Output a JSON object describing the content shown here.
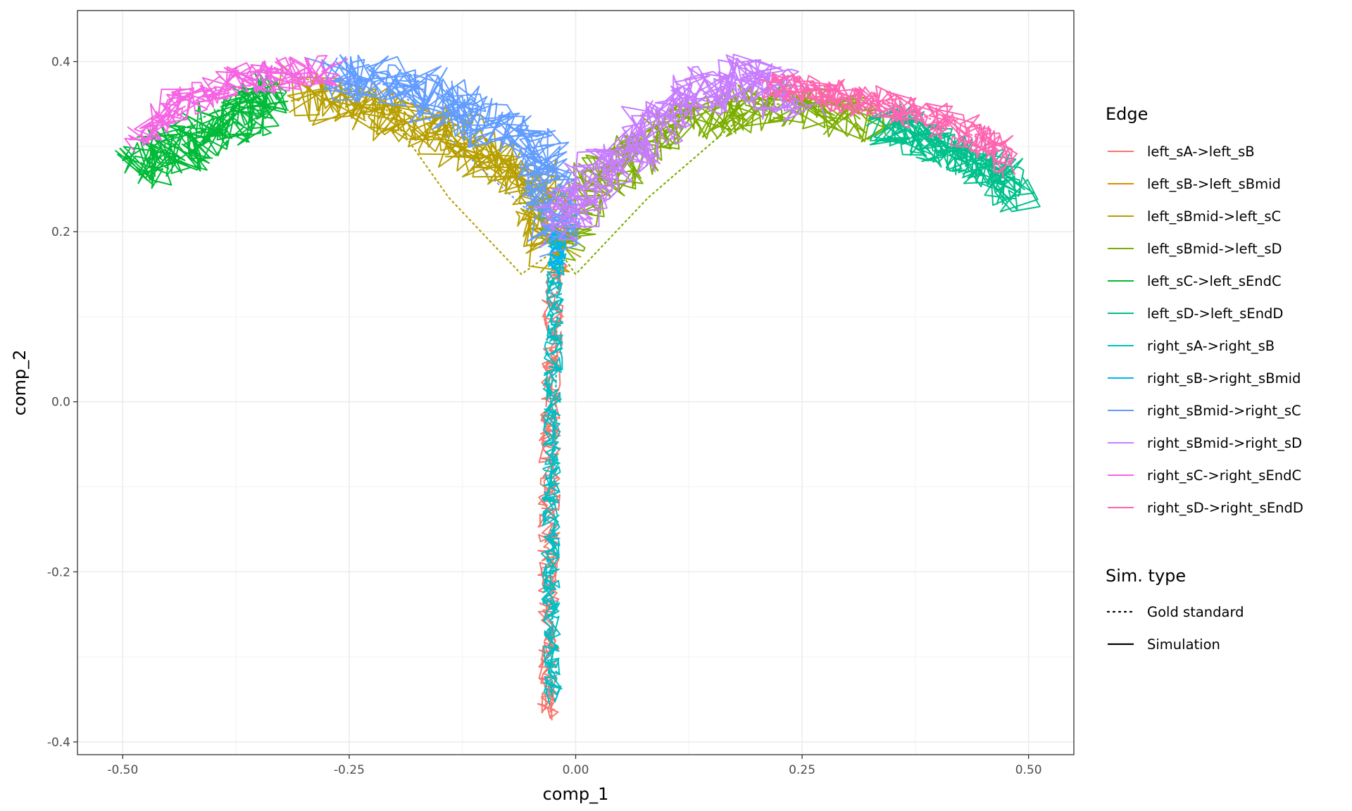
{
  "chart_data": {
    "type": "line",
    "title": "",
    "xlabel": "comp_1",
    "ylabel": "comp_2",
    "xlim": [
      -0.55,
      0.55
    ],
    "ylim": [
      -0.415,
      0.46
    ],
    "x_ticks": [
      -0.5,
      -0.25,
      0.0,
      0.25,
      0.5
    ],
    "x_tick_labels": [
      "-0.50",
      "-0.25",
      "0.00",
      "0.25",
      "0.50"
    ],
    "y_ticks": [
      -0.4,
      -0.2,
      0.0,
      0.2,
      0.4
    ],
    "y_tick_labels": [
      "-0.4",
      "-0.2",
      "0.0",
      "0.2",
      "0.4"
    ],
    "grid": true,
    "legend_position": "right",
    "legend": {
      "color_title": "Edge",
      "linetype_title": "Sim. type",
      "linetype_entries": [
        {
          "label": "Gold standard",
          "dash": "dotted"
        },
        {
          "label": "Simulation",
          "dash": "solid"
        }
      ]
    },
    "series": [
      {
        "name": "left_sA->left_sB",
        "color": "#F8766D",
        "gold": [
          [
            -0.02,
            0.17
          ],
          [
            -0.022,
            0.0
          ],
          [
            -0.025,
            -0.2
          ],
          [
            -0.028,
            -0.37
          ]
        ],
        "sim_anchors": [
          [
            -0.03,
            -0.37
          ],
          [
            -0.03,
            -0.2
          ],
          [
            -0.028,
            0.0
          ],
          [
            -0.025,
            0.12
          ],
          [
            -0.02,
            0.16
          ]
        ],
        "sim_jitter": 0.012,
        "sim_points": 120
      },
      {
        "name": "left_sB->left_sBmid",
        "color": "#DE8C00",
        "gold": [
          [
            -0.02,
            0.17
          ],
          [
            -0.018,
            0.19
          ]
        ],
        "sim_anchors": [
          [
            -0.02,
            0.17
          ],
          [
            -0.017,
            0.19
          ]
        ],
        "sim_jitter": 0.006,
        "sim_points": 10
      },
      {
        "name": "left_sBmid->left_sC",
        "color": "#B79F00",
        "gold": [
          [
            -0.02,
            0.18
          ],
          [
            -0.06,
            0.15
          ],
          [
            -0.14,
            0.24
          ],
          [
            -0.22,
            0.36
          ],
          [
            -0.3,
            0.38
          ],
          [
            -0.34,
            0.37
          ]
        ],
        "sim_anchors": [
          [
            -0.02,
            0.18
          ],
          [
            -0.05,
            0.26
          ],
          [
            -0.15,
            0.32
          ],
          [
            -0.25,
            0.35
          ],
          [
            -0.3,
            0.37
          ]
        ],
        "sim_jitter": 0.03,
        "sim_points": 120
      },
      {
        "name": "left_sBmid->left_sD",
        "color": "#7CAE00",
        "gold": [
          [
            -0.02,
            0.18
          ],
          [
            0.0,
            0.15
          ],
          [
            0.08,
            0.24
          ],
          [
            0.2,
            0.35
          ],
          [
            0.3,
            0.35
          ],
          [
            0.36,
            0.33
          ]
        ],
        "sim_anchors": [
          [
            -0.02,
            0.18
          ],
          [
            0.02,
            0.26
          ],
          [
            0.12,
            0.33
          ],
          [
            0.22,
            0.35
          ],
          [
            0.33,
            0.33
          ]
        ],
        "sim_jitter": 0.028,
        "sim_points": 120
      },
      {
        "name": "left_sC->left_sEndC",
        "color": "#00BA38",
        "gold": [
          [
            -0.34,
            0.37
          ],
          [
            -0.42,
            0.33
          ],
          [
            -0.48,
            0.28
          ]
        ],
        "sim_anchors": [
          [
            -0.33,
            0.36
          ],
          [
            -0.4,
            0.32
          ],
          [
            -0.46,
            0.29
          ],
          [
            -0.485,
            0.27
          ]
        ],
        "sim_jitter": 0.03,
        "sim_points": 80
      },
      {
        "name": "left_sD->left_sEndD",
        "color": "#00C08B",
        "gold": [
          [
            0.36,
            0.33
          ],
          [
            0.43,
            0.3
          ],
          [
            0.48,
            0.27
          ]
        ],
        "sim_anchors": [
          [
            0.34,
            0.33
          ],
          [
            0.42,
            0.29
          ],
          [
            0.47,
            0.27
          ],
          [
            0.49,
            0.24
          ]
        ],
        "sim_jitter": 0.025,
        "sim_points": 90
      },
      {
        "name": "right_sA->right_sB",
        "color": "#00BFC4",
        "gold": [
          [
            -0.02,
            0.17
          ],
          [
            -0.022,
            0.0
          ],
          [
            -0.025,
            -0.2
          ],
          [
            -0.026,
            -0.35
          ]
        ],
        "sim_anchors": [
          [
            -0.025,
            -0.35
          ],
          [
            -0.028,
            -0.2
          ],
          [
            -0.026,
            0.0
          ],
          [
            -0.022,
            0.15
          ],
          [
            -0.02,
            0.18
          ]
        ],
        "sim_jitter": 0.01,
        "sim_points": 140
      },
      {
        "name": "right_sB->right_sBmid",
        "color": "#00B4F0",
        "gold": [
          [
            -0.02,
            0.17
          ],
          [
            -0.016,
            0.19
          ]
        ],
        "sim_anchors": [
          [
            -0.022,
            0.16
          ],
          [
            -0.02,
            0.19
          ],
          [
            -0.018,
            0.2
          ]
        ],
        "sim_jitter": 0.01,
        "sim_points": 20
      },
      {
        "name": "right_sBmid->right_sC",
        "color": "#619CFF",
        "gold": [
          [
            -0.016,
            0.19
          ],
          [
            -0.1,
            0.27
          ],
          [
            -0.2,
            0.37
          ],
          [
            -0.24,
            0.38
          ]
        ],
        "sim_anchors": [
          [
            -0.02,
            0.2
          ],
          [
            -0.04,
            0.3
          ],
          [
            -0.1,
            0.33
          ],
          [
            -0.2,
            0.38
          ],
          [
            -0.27,
            0.38
          ]
        ],
        "sim_jitter": 0.03,
        "sim_points": 110
      },
      {
        "name": "right_sBmid->right_sD",
        "color": "#C77CFF",
        "gold": [
          [
            -0.016,
            0.19
          ],
          [
            0.08,
            0.28
          ],
          [
            0.16,
            0.37
          ],
          [
            0.2,
            0.38
          ]
        ],
        "sim_anchors": [
          [
            -0.02,
            0.21
          ],
          [
            0.05,
            0.29
          ],
          [
            0.12,
            0.36
          ],
          [
            0.2,
            0.38
          ],
          [
            0.25,
            0.35
          ]
        ],
        "sim_jitter": 0.03,
        "sim_points": 110
      },
      {
        "name": "right_sC->right_sEndC",
        "color": "#F564E3",
        "gold": [
          [
            -0.24,
            0.38
          ],
          [
            -0.38,
            0.37
          ],
          [
            -0.47,
            0.33
          ]
        ],
        "sim_anchors": [
          [
            -0.27,
            0.39
          ],
          [
            -0.36,
            0.38
          ],
          [
            -0.44,
            0.35
          ],
          [
            -0.48,
            0.31
          ]
        ],
        "sim_jitter": 0.02,
        "sim_points": 80
      },
      {
        "name": "right_sD->right_sEndD",
        "color": "#FF64B0",
        "gold": [
          [
            0.2,
            0.38
          ],
          [
            0.35,
            0.35
          ],
          [
            0.47,
            0.3
          ]
        ],
        "sim_anchors": [
          [
            0.22,
            0.37
          ],
          [
            0.35,
            0.35
          ],
          [
            0.45,
            0.31
          ],
          [
            0.48,
            0.28
          ]
        ],
        "sim_jitter": 0.02,
        "sim_points": 100
      }
    ]
  }
}
